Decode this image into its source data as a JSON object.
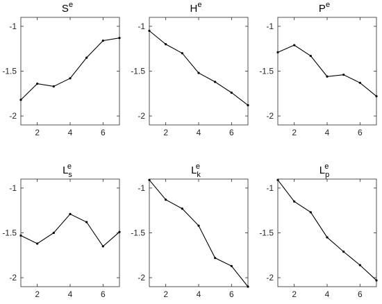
{
  "chart_data": [
    {
      "type": "line",
      "title": "S",
      "title_sup": "e",
      "x": [
        1,
        2,
        3,
        4,
        5,
        6,
        7
      ],
      "values": [
        -1.82,
        -1.64,
        -1.67,
        -1.58,
        -1.35,
        -1.16,
        -1.13
      ],
      "color": "#000000",
      "xlim": [
        1,
        7
      ],
      "xticks": [
        2,
        4,
        6
      ],
      "ylim": [
        -2.1,
        -0.9
      ],
      "yticks": [
        -2,
        -1.5,
        -1
      ]
    },
    {
      "type": "line",
      "title": "H",
      "title_sup": "e",
      "x": [
        1,
        2,
        3,
        4,
        5,
        6,
        7
      ],
      "values": [
        -1.05,
        -1.2,
        -1.3,
        -1.52,
        -1.62,
        -1.74,
        -1.88
      ],
      "color": "#000000",
      "xlim": [
        1,
        7
      ],
      "xticks": [
        2,
        4,
        6
      ],
      "ylim": [
        -2.1,
        -0.9
      ],
      "yticks": [
        -2,
        -1.5,
        -1
      ]
    },
    {
      "type": "line",
      "title": "P",
      "title_sup": "e",
      "x": [
        1,
        2,
        3,
        4,
        5,
        6,
        7
      ],
      "values": [
        -1.29,
        -1.21,
        -1.33,
        -1.56,
        -1.54,
        -1.63,
        -1.78
      ],
      "color": "#000000",
      "xlim": [
        1,
        7
      ],
      "xticks": [
        2,
        4,
        6
      ],
      "ylim": [
        -2.1,
        -0.9
      ],
      "yticks": [
        -2,
        -1.5,
        -1
      ]
    },
    {
      "type": "line",
      "title": "L",
      "title_sup": "e",
      "title_sub": "s",
      "x": [
        1,
        2,
        3,
        4,
        5,
        6,
        7
      ],
      "values": [
        -1.53,
        -1.62,
        -1.5,
        -1.29,
        -1.38,
        -1.65,
        -1.49
      ],
      "color": "#000000",
      "xlim": [
        1,
        7
      ],
      "xticks": [
        2,
        4,
        6
      ],
      "ylim": [
        -2.1,
        -0.9
      ],
      "yticks": [
        -2,
        -1.5,
        -1
      ]
    },
    {
      "type": "line",
      "title": "L",
      "title_sup": "e",
      "title_sub": "k",
      "x": [
        1,
        2,
        3,
        4,
        5,
        6,
        7
      ],
      "values": [
        -0.91,
        -1.13,
        -1.23,
        -1.42,
        -1.78,
        -1.87,
        -2.1
      ],
      "color": "#000000",
      "xlim": [
        1,
        7
      ],
      "xticks": [
        2,
        4,
        6
      ],
      "ylim": [
        -2.1,
        -0.9
      ],
      "yticks": [
        -2,
        -1.5,
        -1
      ]
    },
    {
      "type": "line",
      "title": "L",
      "title_sup": "e",
      "title_sub": "p",
      "x": [
        1,
        2,
        3,
        4,
        5,
        6,
        7
      ],
      "values": [
        -0.91,
        -1.15,
        -1.27,
        -1.55,
        -1.71,
        -1.86,
        -2.03
      ],
      "color": "#000000",
      "xlim": [
        1,
        7
      ],
      "xticks": [
        2,
        4,
        6
      ],
      "ylim": [
        -2.1,
        -0.9
      ],
      "yticks": [
        -2,
        -1.5,
        -1
      ]
    }
  ]
}
